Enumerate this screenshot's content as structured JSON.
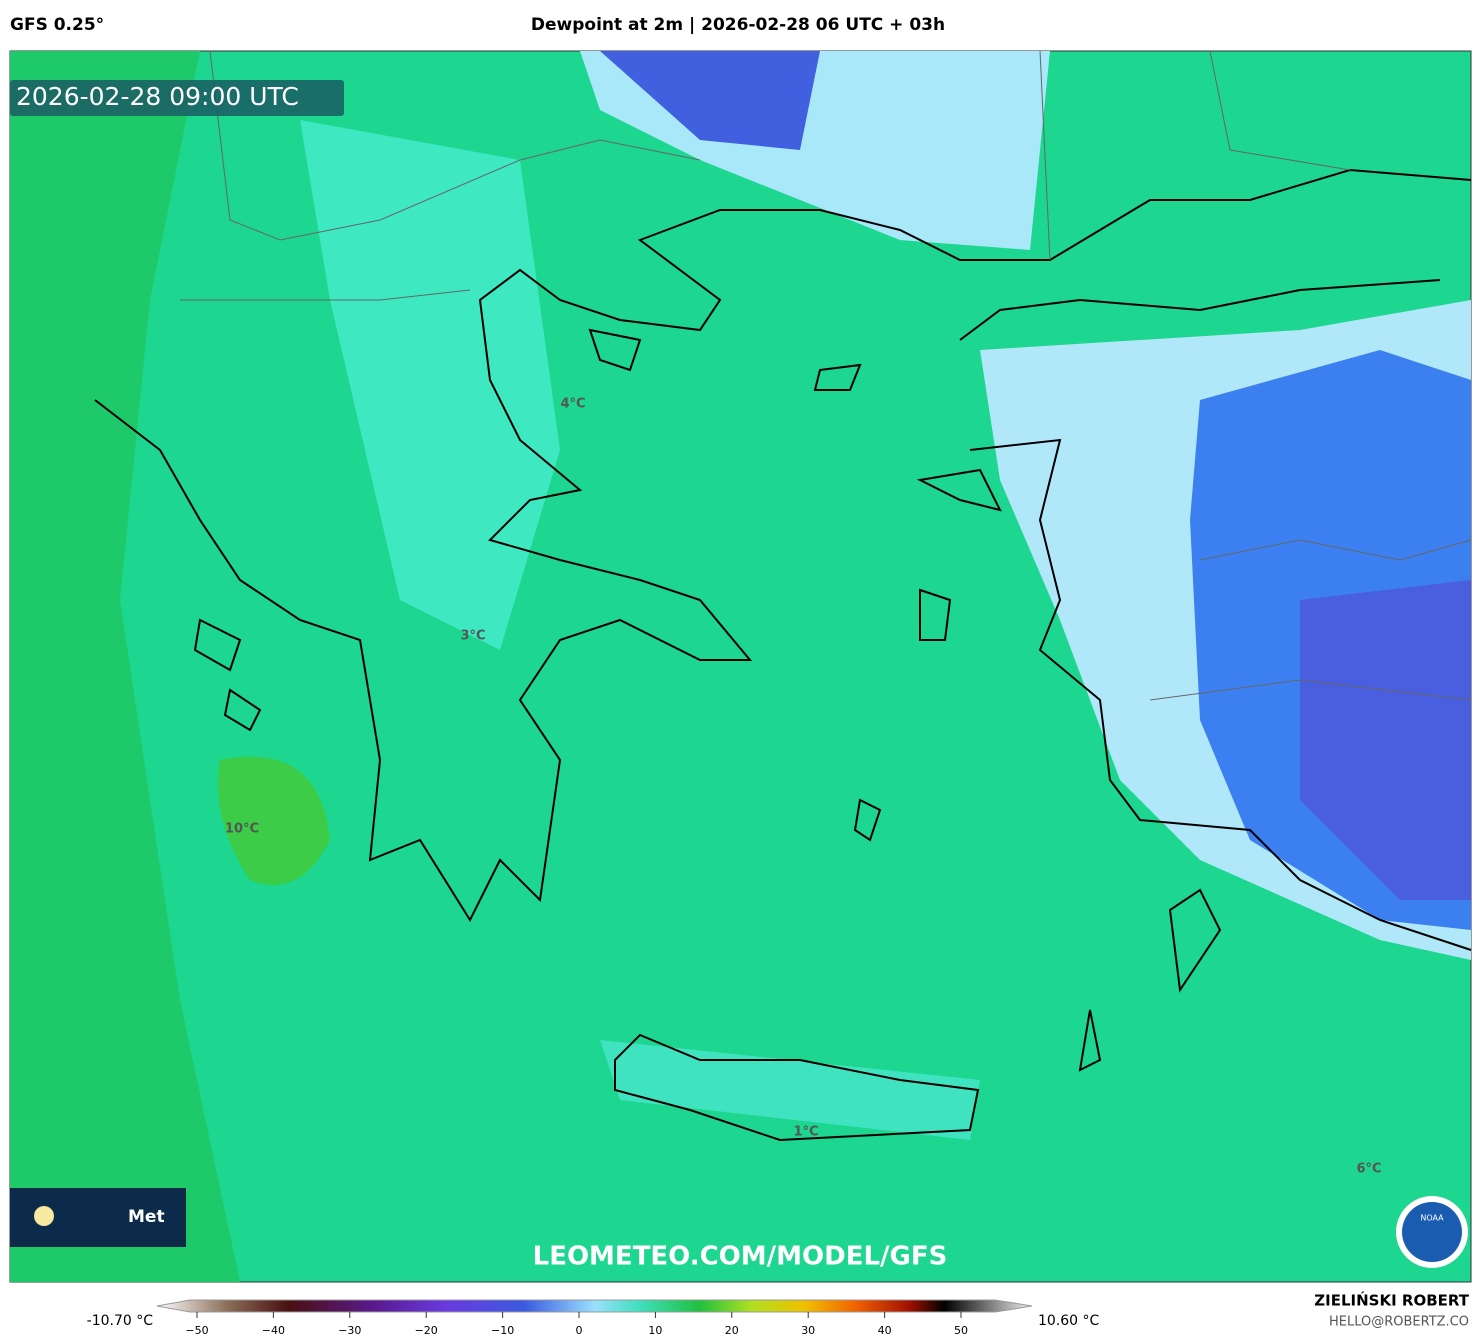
{
  "header": {
    "model": "GFS 0.25°",
    "title": "Dewpoint at 2m | 2026-02-28 06 UTC + 03h"
  },
  "map": {
    "valid_time": "2026-02-28 09:00 UTC",
    "contour_labels": [
      "4°C",
      "3°C",
      "10°C",
      "1°C",
      "6°C"
    ],
    "watermark": "LEOMETEO.COM/MODEL/GFS",
    "logo_text": "Met",
    "noaa": "NOAA"
  },
  "colorbar": {
    "min_label": "-10.70 °C",
    "max_label": "10.60 °C",
    "ticks": [
      {
        "value": -50,
        "label": "−50"
      },
      {
        "value": -40,
        "label": "−40"
      },
      {
        "value": -30,
        "label": "−30"
      },
      {
        "value": -20,
        "label": "−20"
      },
      {
        "value": -10,
        "label": "−10"
      },
      0,
      10,
      20,
      30,
      40,
      50
    ]
  },
  "footer": {
    "author": "ZIELIŃSKI ROBERT",
    "email": "HELLO@ROBERTZ.CO"
  }
}
